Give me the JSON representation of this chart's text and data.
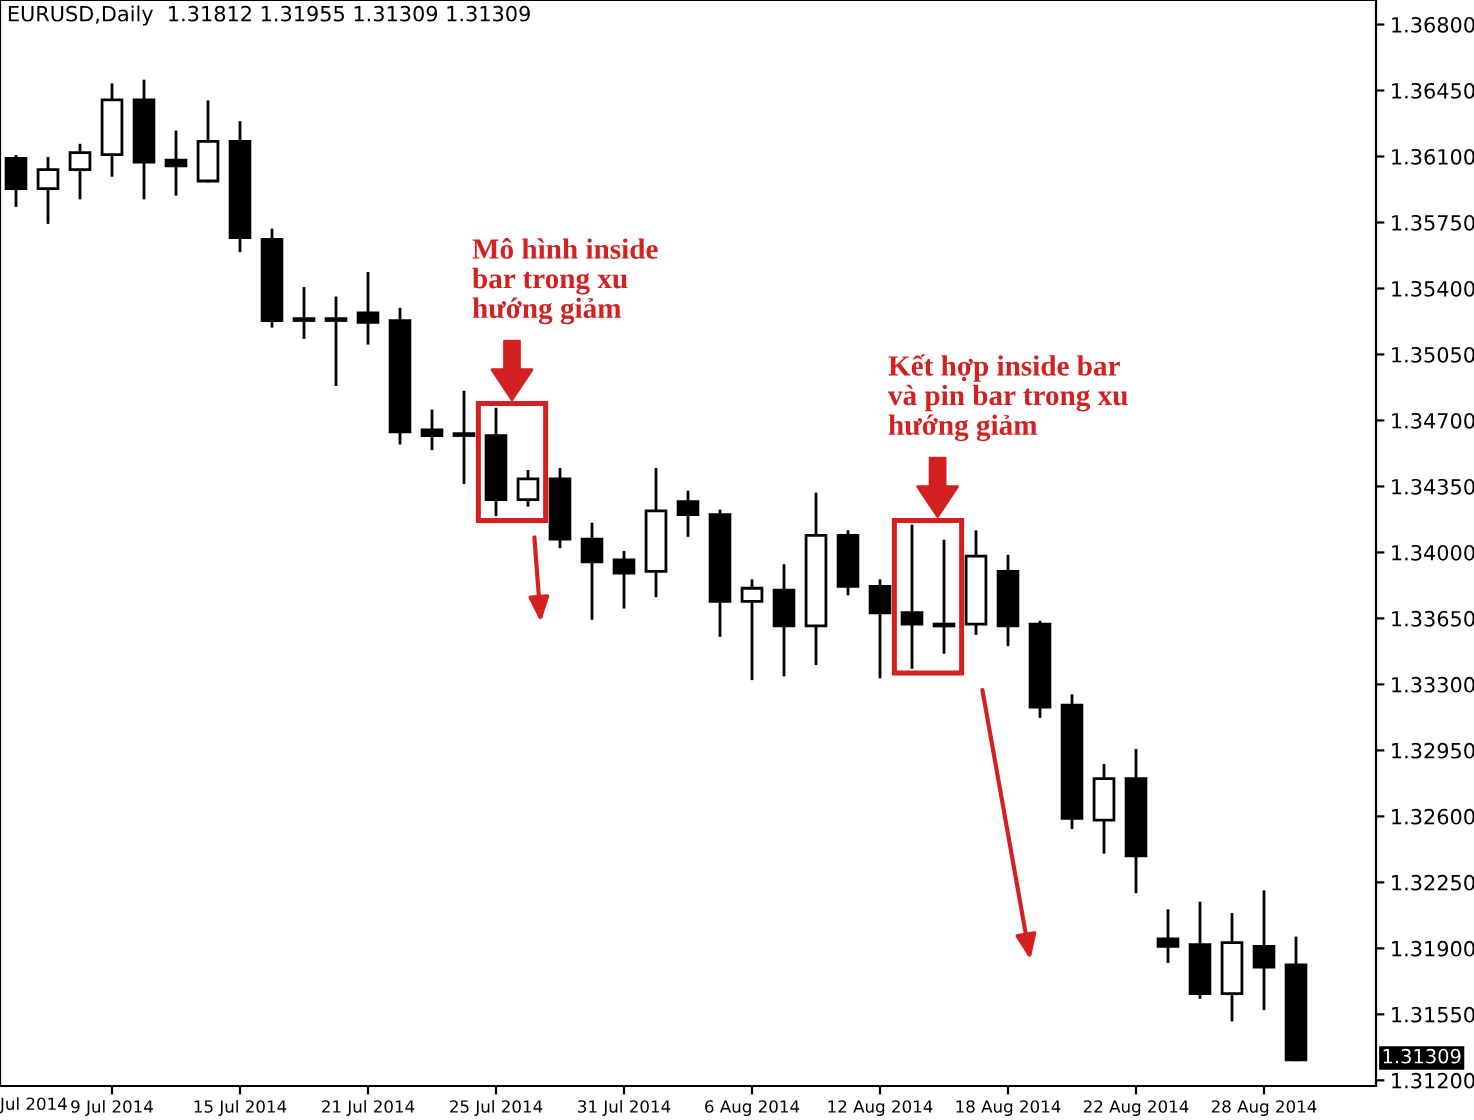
{
  "chart_data": {
    "type": "candlestick",
    "title": "EURUSD,Daily  1.31812 1.31955 1.31309 1.31309",
    "categories": [
      null,
      null,
      null,
      "9 Jul 2014",
      null,
      null,
      null,
      "15 Jul 2014",
      null,
      null,
      null,
      "21 Jul 2014",
      null,
      null,
      null,
      "25 Jul 2014",
      null,
      null,
      null,
      "31 Jul 2014",
      null,
      null,
      null,
      "6 Aug 2014",
      null,
      null,
      null,
      "12 Aug 2014",
      null,
      null,
      null,
      "18 Aug 2014",
      null,
      null,
      null,
      "22 Aug 2014",
      null,
      null,
      null,
      "28 Aug 2014",
      null
    ],
    "ohlc": [
      [
        1.3609,
        1.361,
        1.3584,
        1.3593
      ],
      [
        1.3593,
        1.3609,
        1.3575,
        1.3603
      ],
      [
        1.3603,
        1.3616,
        1.3588,
        1.3612
      ],
      [
        1.3611,
        1.3648,
        1.36,
        1.364
      ],
      [
        1.364,
        1.365,
        1.3588,
        1.3607
      ],
      [
        1.3608,
        1.3623,
        1.359,
        1.3605
      ],
      [
        1.3597,
        1.3639,
        1.3597,
        1.3618
      ],
      [
        1.3618,
        1.3628,
        1.356,
        1.3567
      ],
      [
        1.3566,
        1.3571,
        1.352,
        1.3523
      ],
      [
        1.3524,
        1.354,
        1.3514,
        1.3523
      ],
      [
        1.3524,
        1.3535,
        1.3489,
        1.3523
      ],
      [
        1.3527,
        1.3548,
        1.3511,
        1.3522
      ],
      [
        1.3523,
        1.3529,
        1.3458,
        1.3464
      ],
      [
        1.3465,
        1.3475,
        1.3455,
        1.3462
      ],
      [
        1.3463,
        1.3485,
        1.3437,
        1.3462
      ],
      [
        1.3462,
        1.3476,
        1.342,
        1.3428
      ],
      [
        1.3428,
        1.3443,
        1.3425,
        1.3439
      ],
      [
        1.3439,
        1.3444,
        1.3403,
        1.3407
      ],
      [
        1.3407,
        1.3415,
        1.3365,
        1.3395
      ],
      [
        1.3396,
        1.34,
        1.3371,
        1.3389
      ],
      [
        1.339,
        1.3444,
        1.3377,
        1.3422
      ],
      [
        1.3427,
        1.3432,
        1.3409,
        1.342
      ],
      [
        1.342,
        1.3422,
        1.3356,
        1.3374
      ],
      [
        1.3374,
        1.3385,
        1.3333,
        1.3381
      ],
      [
        1.338,
        1.3393,
        1.3335,
        1.3361
      ],
      [
        1.3361,
        1.3431,
        1.3341,
        1.3409
      ],
      [
        1.3409,
        1.3411,
        1.3378,
        1.3382
      ],
      [
        1.3382,
        1.3385,
        1.3334,
        1.3368
      ],
      [
        1.3368,
        1.3414,
        1.3339,
        1.3362
      ],
      [
        1.3362,
        1.3406,
        1.3347,
        1.3361
      ],
      [
        1.3362,
        1.3411,
        1.3357,
        1.3398
      ],
      [
        1.339,
        1.3398,
        1.3351,
        1.3361
      ],
      [
        1.3362,
        1.3363,
        1.3313,
        1.3318
      ],
      [
        1.3319,
        1.3324,
        1.3254,
        1.3259
      ],
      [
        1.3258,
        1.3287,
        1.3241,
        1.328
      ],
      [
        1.328,
        1.3295,
        1.322,
        1.3239
      ],
      [
        1.3195,
        1.321,
        1.3183,
        1.3191
      ],
      [
        1.3192,
        1.3214,
        1.3164,
        1.3166
      ],
      [
        1.3166,
        1.3208,
        1.3152,
        1.3193
      ],
      [
        1.3191,
        1.322,
        1.3158,
        1.318
      ],
      [
        1.31812,
        1.31955,
        1.31309,
        1.31309
      ]
    ],
    "ylim": [
      1.3117,
      1.3693
    ],
    "yticks": [
      {
        "value": 1.368,
        "label": "1.36800"
      },
      {
        "value": 1.3645,
        "label": "1.36450"
      },
      {
        "value": 1.361,
        "label": "1.36100"
      },
      {
        "value": 1.3575,
        "label": "1.35750"
      },
      {
        "value": 1.354,
        "label": "1.35400"
      },
      {
        "value": 1.3505,
        "label": "1.35050"
      },
      {
        "value": 1.347,
        "label": "1.34700"
      },
      {
        "value": 1.3435,
        "label": "1.34350"
      },
      {
        "value": 1.34,
        "label": "1.34000"
      },
      {
        "value": 1.3365,
        "label": "1.33650"
      },
      {
        "value": 1.333,
        "label": "1.33300"
      },
      {
        "value": 1.3295,
        "label": "1.32950"
      },
      {
        "value": 1.326,
        "label": "1.32600"
      },
      {
        "value": 1.3225,
        "label": "1.32250"
      },
      {
        "value": 1.319,
        "label": "1.31900"
      },
      {
        "value": 1.3155,
        "label": "1.31550"
      },
      {
        "value": 1.312,
        "label": "1.31200"
      }
    ],
    "annotations": [
      "Mô hình inside\nbar trong xu\nhướng giảm",
      "Kết hợp inside bar\nvà pin bar trong xu\nhướng giảm",
      "Jul 2014",
      "1.31309"
    ],
    "grid": false
  }
}
